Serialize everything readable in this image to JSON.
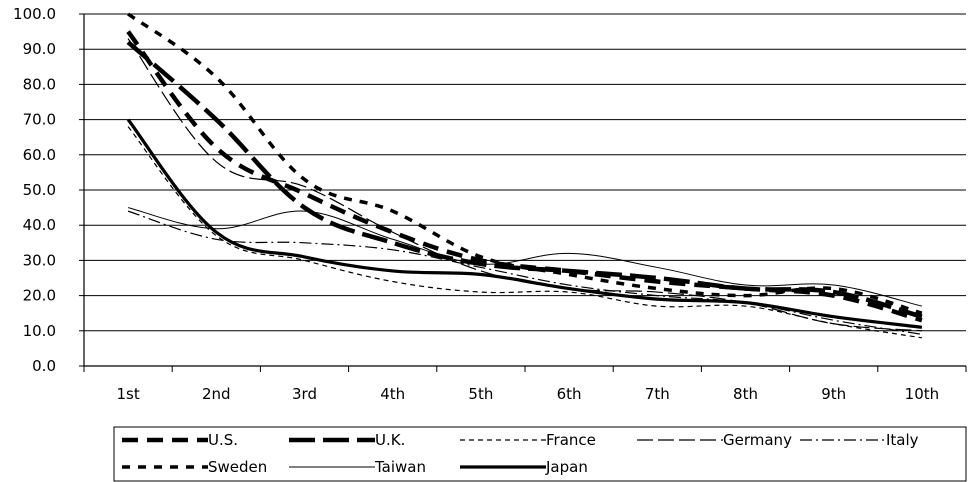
{
  "chart_data": {
    "type": "line",
    "categories": [
      "1st",
      "2nd",
      "3rd",
      "4th",
      "5th",
      "6th",
      "7th",
      "8th",
      "9th",
      "10th"
    ],
    "ylim": [
      0,
      100
    ],
    "yticks": [
      "0.0",
      "10.0",
      "20.0",
      "30.0",
      "40.0",
      "50.0",
      "60.0",
      "70.0",
      "80.0",
      "90.0",
      "100.0"
    ],
    "grid": "horizontal",
    "legend_position": "bottom",
    "series": [
      {
        "name": "U.S.",
        "values": [
          95,
          62,
          49,
          38,
          30,
          27,
          24,
          22,
          20,
          13
        ]
      },
      {
        "name": "U.K.",
        "values": [
          92,
          70,
          45,
          35,
          29,
          27,
          25,
          22,
          21,
          14
        ]
      },
      {
        "name": "France",
        "values": [
          68,
          37,
          30,
          24,
          21,
          21,
          17,
          17,
          12,
          8
        ]
      },
      {
        "name": "Germany",
        "values": [
          93,
          58,
          51,
          38,
          27,
          22,
          21,
          18,
          12,
          10
        ]
      },
      {
        "name": "Italy",
        "values": [
          44,
          36,
          35,
          33,
          28,
          23,
          20,
          18,
          13,
          9
        ]
      },
      {
        "name": "Sweden",
        "values": [
          100,
          82,
          53,
          44,
          31,
          26,
          22,
          20,
          22,
          15
        ]
      },
      {
        "name": "Taiwan",
        "values": [
          45,
          39,
          44,
          36,
          29,
          32,
          28,
          23,
          23,
          17
        ]
      },
      {
        "name": "Japan",
        "values": [
          70,
          38,
          31,
          27,
          26,
          22,
          19,
          18,
          14,
          11
        ]
      }
    ]
  }
}
